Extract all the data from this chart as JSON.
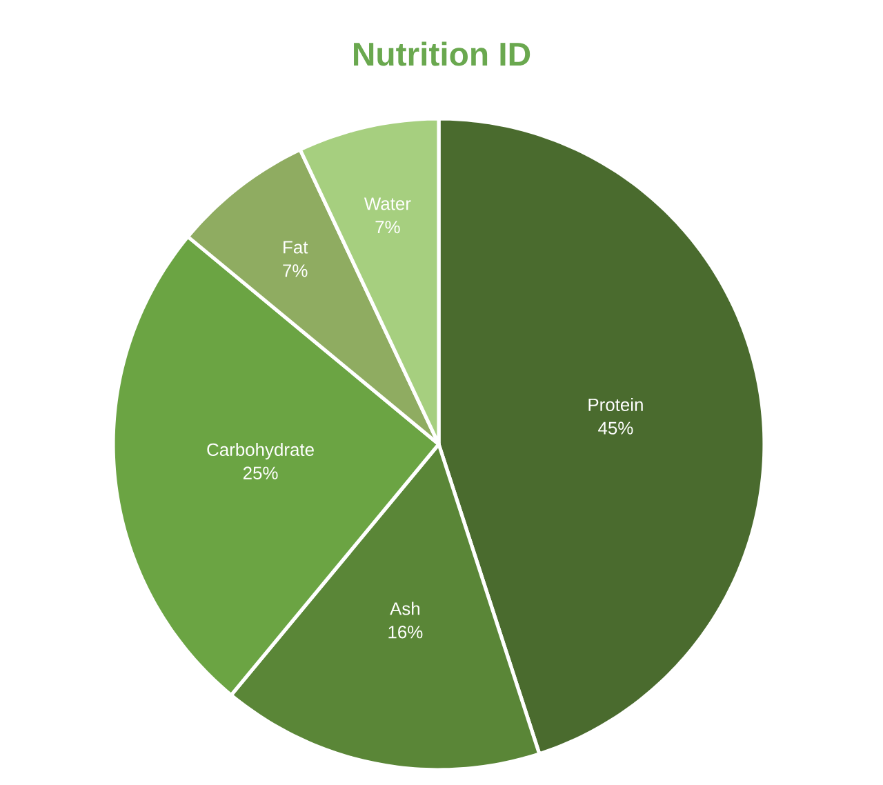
{
  "chart_data": {
    "type": "pie",
    "title": "Nutrition ID",
    "categories": [
      "Protein",
      "Ash",
      "Carbohydrate",
      "Fat",
      "Water"
    ],
    "values": [
      45,
      16,
      25,
      7,
      7
    ],
    "value_labels": [
      "45%",
      "16%",
      "25%",
      "7%",
      "7%"
    ],
    "colors": [
      "#4a6b2e",
      "#5a8637",
      "#6ba443",
      "#8fac61",
      "#a6cf7f"
    ]
  }
}
